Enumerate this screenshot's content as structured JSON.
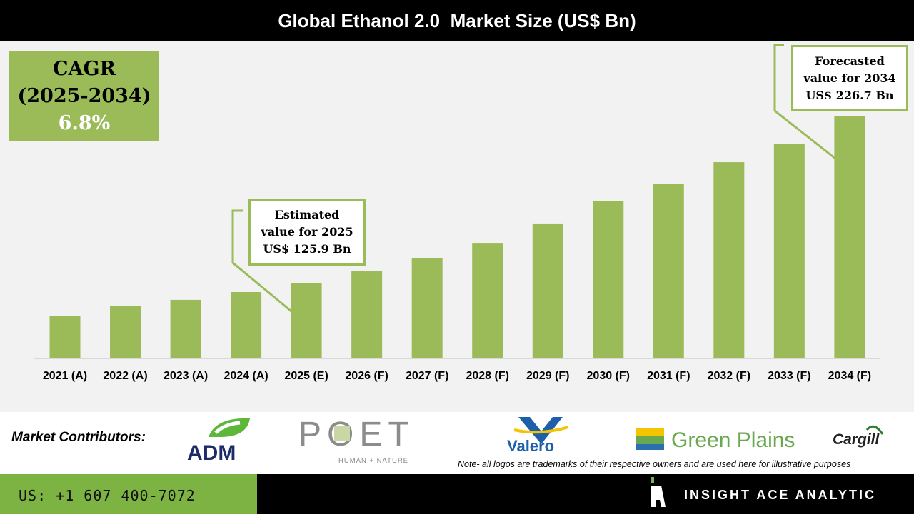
{
  "chart_data": {
    "type": "bar",
    "title": "Global Ethanol 2.0  Market Size (US$ Bn)",
    "categories": [
      "2021 (A)",
      "2022 (A)",
      "2023 (A)",
      "2024 (A)",
      "2025 (E)",
      "2026 (F)",
      "2027 (F)",
      "2028 (F)",
      "2029 (F)",
      "2030 (F)",
      "2031 (F)",
      "2032 (F)",
      "2033 (F)",
      "2034 (F)"
    ],
    "values": [
      106.1,
      111.7,
      115.6,
      120.3,
      125.9,
      132.8,
      140.6,
      150.0,
      161.7,
      175.4,
      185.4,
      198.7,
      209.9,
      226.7
    ],
    "xlabel": "",
    "ylabel": "",
    "grid": false,
    "bar_color": "#9bbb59",
    "annotations": {
      "cagr": {
        "line1": "CAGR",
        "line2": "(2025-2034)",
        "value": "6.8%"
      },
      "estimated": {
        "line1": "Estimated",
        "line2": "value for 2025",
        "line3": "US$ 125.9 Bn"
      },
      "forecasted": {
        "line1": "Forecasted",
        "line2": "value for 2034",
        "line3": "US$ 226.7 Bn"
      }
    }
  },
  "contributors": {
    "label": "Market Contributors:",
    "logos": [
      "ADM",
      "POET",
      "HUMAN + NATURE",
      "Valero",
      "Green Plains",
      "Cargill"
    ],
    "note": "Note- all logos are trademarks of their respective owners and are used here for illustrative purposes"
  },
  "footer": {
    "phone": "US: +1 607 400-7072",
    "brand": "INSIGHT ACE ANALYTIC",
    "accent": "#7cb342"
  }
}
